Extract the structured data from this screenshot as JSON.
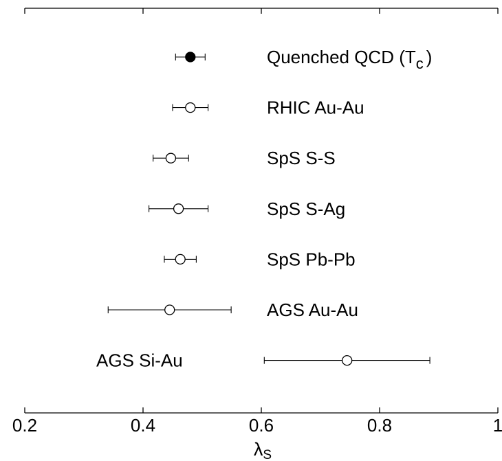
{
  "chart_data": {
    "type": "scatter",
    "orientation": "horizontal-error-bars",
    "xlabel": "λ",
    "xlabel_subscript": "S",
    "xlim": [
      0.2,
      1.0
    ],
    "x_ticks": [
      0.2,
      0.4,
      0.6,
      0.8,
      1.0
    ],
    "x_tick_labels": [
      "0.2",
      "0.4",
      "0.6",
      "0.8",
      "1"
    ],
    "grid": false,
    "points": [
      {
        "label": "Quenched QCD (T",
        "label_subscript": "c",
        "label_suffix": ")",
        "x": 0.48,
        "err_low": 0.025,
        "err_high": 0.025,
        "marker": "filled"
      },
      {
        "label": "RHIC Au-Au",
        "label_subscript": "",
        "label_suffix": "",
        "x": 0.48,
        "err_low": 0.03,
        "err_high": 0.03,
        "marker": "open"
      },
      {
        "label": "SpS S-S",
        "label_subscript": "",
        "label_suffix": "",
        "x": 0.447,
        "err_low": 0.03,
        "err_high": 0.03,
        "marker": "open"
      },
      {
        "label": "SpS S-Ag",
        "label_subscript": "",
        "label_suffix": "",
        "x": 0.46,
        "err_low": 0.05,
        "err_high": 0.05,
        "marker": "open"
      },
      {
        "label": "SpS Pb-Pb",
        "label_subscript": "",
        "label_suffix": "",
        "x": 0.463,
        "err_low": 0.027,
        "err_high": 0.027,
        "marker": "open"
      },
      {
        "label": "AGS Au-Au",
        "label_subscript": "",
        "label_suffix": "",
        "x": 0.445,
        "err_low": 0.104,
        "err_high": 0.104,
        "marker": "open"
      },
      {
        "label": "AGS Si-Au",
        "label_subscript": "",
        "label_suffix": "",
        "x": 0.745,
        "err_low": 0.14,
        "err_high": 0.14,
        "marker": "open",
        "label_side": "left"
      }
    ]
  }
}
